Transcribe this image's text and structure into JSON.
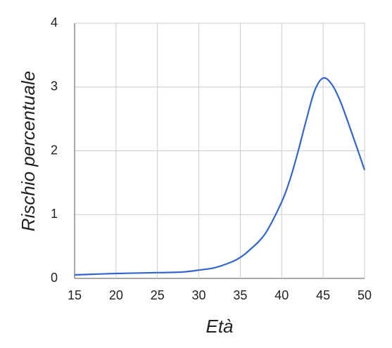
{
  "chart_data": {
    "type": "line",
    "x_label": "Età",
    "y_label": "Rischio percentuale",
    "x": [
      15,
      20,
      25,
      28,
      30,
      32,
      34,
      35,
      36,
      38,
      40,
      41,
      42,
      43,
      44,
      45,
      46,
      47,
      48,
      49,
      50
    ],
    "series": [
      {
        "color": "#3366cc",
        "values": [
          0.055,
          0.077,
          0.09,
          0.1,
          0.13,
          0.17,
          0.26,
          0.33,
          0.43,
          0.7,
          1.2,
          1.55,
          2.0,
          2.5,
          2.95,
          3.14,
          3.05,
          2.8,
          2.45,
          2.08,
          1.7
        ]
      }
    ],
    "xlim": [
      15,
      50
    ],
    "xticks": [
      15,
      20,
      25,
      30,
      35,
      40,
      45,
      50
    ],
    "ylim": [
      0,
      4
    ],
    "yticks": [
      0,
      1,
      2,
      3,
      4
    ],
    "grid": true
  }
}
